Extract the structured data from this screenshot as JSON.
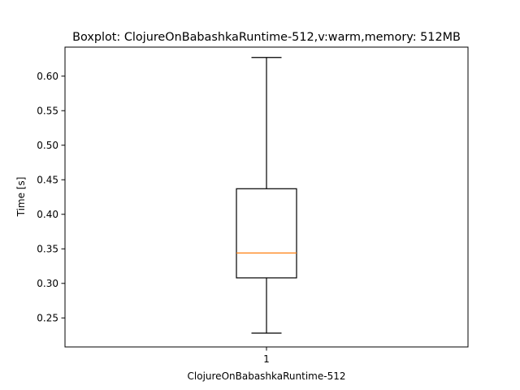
{
  "chart_data": {
    "type": "box",
    "title": "Boxplot: ClojureOnBabashkaRuntime-512,v:warm,memory: 512MB",
    "xlabel": "ClojureOnBabashkaRuntime-512",
    "ylabel": "Time [s]",
    "categories": [
      "1"
    ],
    "ylim": [
      0.208,
      0.642
    ],
    "yticks": [
      "0.25",
      "0.30",
      "0.35",
      "0.40",
      "0.45",
      "0.50",
      "0.55",
      "0.60"
    ],
    "boxes": [
      {
        "category": "1",
        "whisker_low": 0.228,
        "q1": 0.308,
        "median": 0.344,
        "q3": 0.437,
        "whisker_high": 0.627
      }
    ],
    "colors": {
      "box": "#000000",
      "median": "#ff7f0e"
    },
    "grid": false
  }
}
